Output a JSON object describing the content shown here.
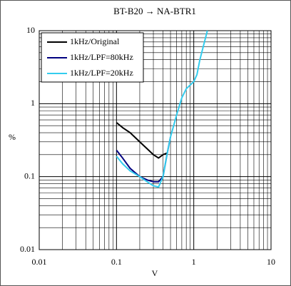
{
  "chart_data": {
    "type": "line",
    "title": "BT-B20 → NA-BTR1",
    "xlabel": "V",
    "ylabel": "%",
    "log_x": true,
    "log_y": true,
    "grid": true,
    "legend": "upper left",
    "xlim": [
      0.01,
      10
    ],
    "ylim": [
      0.01,
      10
    ],
    "xticks": [
      0.01,
      0.1,
      1,
      10
    ],
    "yticks": [
      0.01,
      0.1,
      1,
      10
    ],
    "x": [
      0.1,
      0.12,
      0.15,
      0.2,
      0.25,
      0.3,
      0.35,
      0.4,
      0.45,
      0.5,
      0.6,
      0.7,
      0.8,
      1,
      1.1,
      1.2,
      1.5
    ],
    "series": [
      {
        "name": "1kHz/Original",
        "color": "#000000",
        "values": [
          0.55,
          0.47,
          0.4,
          0.3,
          0.24,
          0.2,
          0.18,
          0.2,
          0.21,
          null,
          null,
          null,
          null,
          null,
          null,
          null,
          null
        ]
      },
      {
        "name": "1kHz/LPF=80kHz",
        "color": "#000080",
        "values": [
          0.23,
          0.18,
          0.13,
          0.1,
          0.09,
          0.085,
          0.085,
          0.1,
          0.2,
          0.35,
          null,
          null,
          null,
          null,
          null,
          null,
          null
        ]
      },
      {
        "name": "1kHz/LPF=20kHz",
        "color": "#33ccee",
        "values": [
          0.19,
          0.15,
          0.12,
          0.1,
          0.085,
          0.075,
          0.072,
          0.1,
          0.2,
          0.35,
          0.7,
          1.2,
          1.6,
          2,
          2.5,
          4,
          10
        ]
      }
    ]
  }
}
